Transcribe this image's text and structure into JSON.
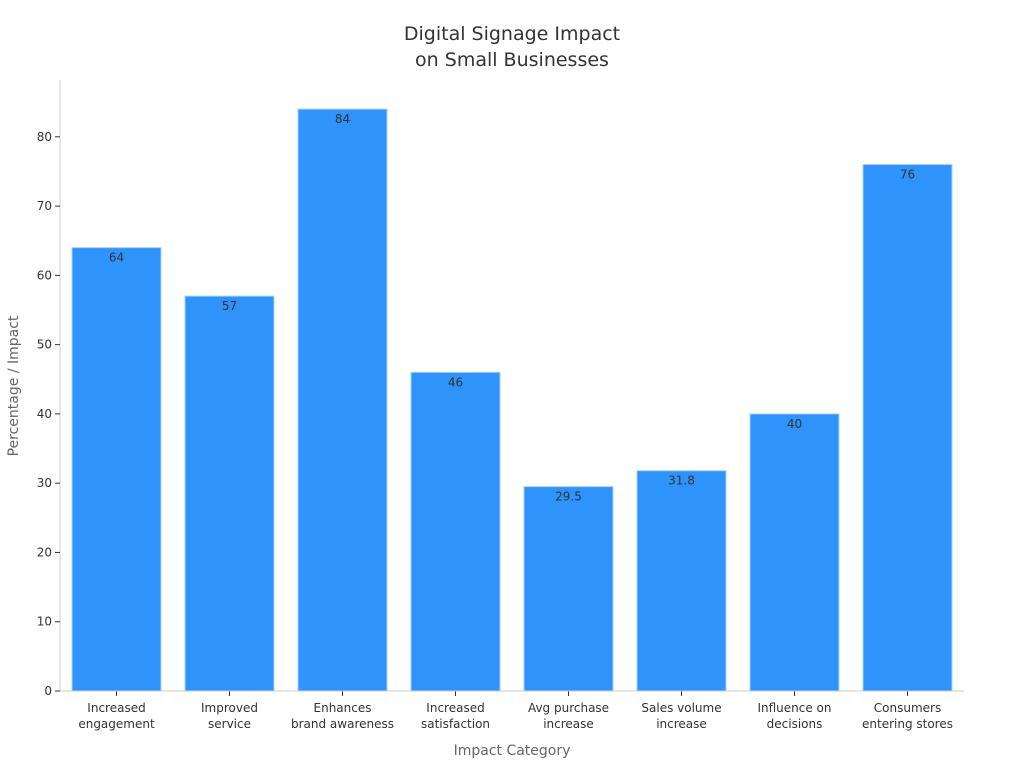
{
  "chart_data": {
    "type": "bar",
    "title": [
      "Digital Signage Impact",
      "on Small Businesses"
    ],
    "xlabel": "Impact Category",
    "ylabel": "Percentage / Impact",
    "categories": [
      [
        "Increased",
        "engagement"
      ],
      [
        "Improved",
        "service"
      ],
      [
        "Enhances",
        "brand awareness"
      ],
      [
        "Increased",
        "satisfaction"
      ],
      [
        "Avg purchase",
        "increase"
      ],
      [
        "Sales volume",
        "increase"
      ],
      [
        "Influence on",
        "decisions"
      ],
      [
        "Consumers",
        "entering stores"
      ]
    ],
    "values": [
      64,
      57,
      84,
      46,
      29.5,
      31.8,
      40,
      76
    ],
    "value_labels": [
      "64",
      "57",
      "84",
      "46",
      "29.5",
      "31.8",
      "40",
      "76"
    ],
    "ylim": [
      0,
      88.2
    ],
    "yticks": [
      0,
      10,
      20,
      30,
      40,
      50,
      60,
      70,
      80
    ],
    "grid": false,
    "legend": "none",
    "colors": {
      "bar": "#2E93FA",
      "bar_edge": "#A8D1FB",
      "axis": "#CCCCCC"
    }
  }
}
